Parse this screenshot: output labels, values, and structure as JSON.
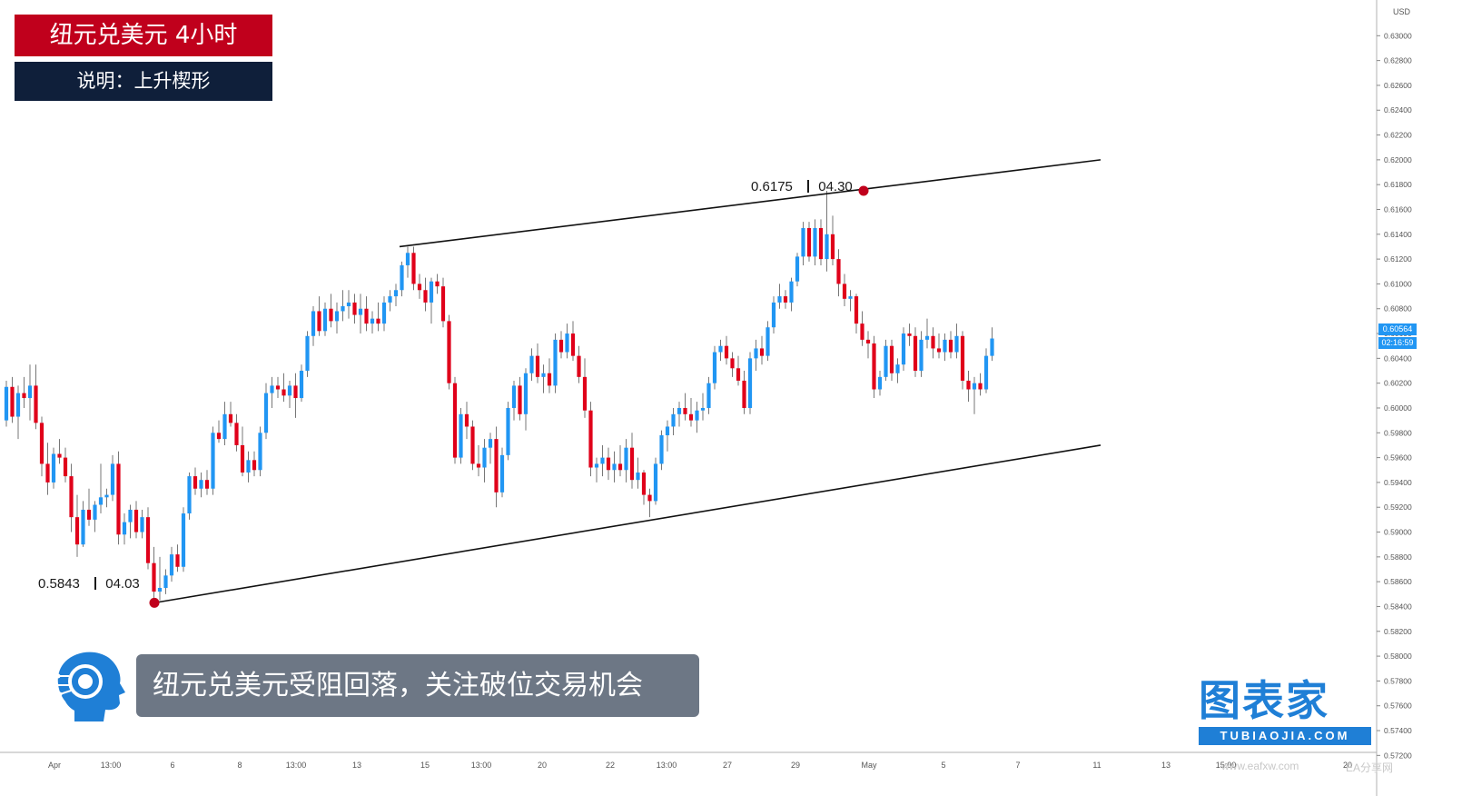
{
  "header": {
    "title": "纽元兑美元 4小时",
    "description": "说明：上升楔形"
  },
  "caption": "纽元兑美元受阻回落，关注破位交易机会",
  "annotations": {
    "low_value": "0.5843",
    "low_date": "04.03",
    "high_value": "0.6175",
    "high_date": "04.30"
  },
  "price_axis": {
    "currency": "USD",
    "current_price": "0.60564",
    "countdown": "02:16:59"
  },
  "watermark": {
    "brand": "图表家",
    "domain": "TUBIAOJIA.COM",
    "site2": "www.eafxw.com",
    "site2_label": "EA分享网"
  },
  "colors": {
    "bull": "#2196f3",
    "bear": "#e0001a",
    "title_bg": "#c0001c",
    "desc_bg": "#0f1f3a",
    "caption_bg": "#6d7785",
    "brand_blue": "#1f7fd6"
  },
  "icons": {
    "avatar": "ai-head-icon"
  },
  "chart_data": {
    "type": "candlestick",
    "title": "纽元兑美元 4小时",
    "ylim": [
      0.571,
      0.632
    ],
    "y_ticks": [
      "0.63000",
      "0.62800",
      "0.62600",
      "0.62400",
      "0.62200",
      "0.62000",
      "0.61800",
      "0.61600",
      "0.61400",
      "0.61200",
      "0.61000",
      "0.60800",
      "0.60600",
      "0.60400",
      "0.60200",
      "0.60000",
      "0.59800",
      "0.59600",
      "0.59400",
      "0.59200",
      "0.59000",
      "0.58800",
      "0.58600",
      "0.58400",
      "0.58200",
      "0.58000",
      "0.57800",
      "0.57600",
      "0.57400",
      "0.57200"
    ],
    "x_ticks": [
      "Apr",
      "13:00",
      "6",
      "8",
      "13:00",
      "13",
      "15",
      "13:00",
      "20",
      "22",
      "13:00",
      "27",
      "29",
      "May",
      "5",
      "7",
      "11",
      "13",
      "15:00",
      "20"
    ],
    "grid": false,
    "candles": [
      {
        "o": 0.599,
        "h": 0.6022,
        "l": 0.5985,
        "c": 0.6017
      },
      {
        "o": 0.6017,
        "h": 0.6025,
        "l": 0.5988,
        "c": 0.5993
      },
      {
        "o": 0.5993,
        "h": 0.6018,
        "l": 0.5975,
        "c": 0.6012
      },
      {
        "o": 0.6012,
        "h": 0.6025,
        "l": 0.6,
        "c": 0.6008
      },
      {
        "o": 0.6008,
        "h": 0.6035,
        "l": 0.599,
        "c": 0.6018
      },
      {
        "o": 0.6018,
        "h": 0.6035,
        "l": 0.5983,
        "c": 0.5988
      },
      {
        "o": 0.5988,
        "h": 0.5993,
        "l": 0.5945,
        "c": 0.5955
      },
      {
        "o": 0.5955,
        "h": 0.5972,
        "l": 0.593,
        "c": 0.594
      },
      {
        "o": 0.594,
        "h": 0.5968,
        "l": 0.5935,
        "c": 0.5963
      },
      {
        "o": 0.5963,
        "h": 0.5975,
        "l": 0.5955,
        "c": 0.596
      },
      {
        "o": 0.596,
        "h": 0.5968,
        "l": 0.594,
        "c": 0.5945
      },
      {
        "o": 0.5945,
        "h": 0.5955,
        "l": 0.59,
        "c": 0.5912
      },
      {
        "o": 0.5912,
        "h": 0.593,
        "l": 0.588,
        "c": 0.589
      },
      {
        "o": 0.589,
        "h": 0.5925,
        "l": 0.5888,
        "c": 0.5918
      },
      {
        "o": 0.5918,
        "h": 0.5935,
        "l": 0.5905,
        "c": 0.591
      },
      {
        "o": 0.591,
        "h": 0.5925,
        "l": 0.59,
        "c": 0.5922
      },
      {
        "o": 0.5922,
        "h": 0.5955,
        "l": 0.5915,
        "c": 0.5928
      },
      {
        "o": 0.5928,
        "h": 0.5935,
        "l": 0.592,
        "c": 0.593
      },
      {
        "o": 0.593,
        "h": 0.5962,
        "l": 0.5925,
        "c": 0.5955
      },
      {
        "o": 0.5955,
        "h": 0.5965,
        "l": 0.589,
        "c": 0.5898
      },
      {
        "o": 0.5898,
        "h": 0.5915,
        "l": 0.589,
        "c": 0.5908
      },
      {
        "o": 0.5908,
        "h": 0.5922,
        "l": 0.5895,
        "c": 0.5918
      },
      {
        "o": 0.5918,
        "h": 0.5925,
        "l": 0.5895,
        "c": 0.59
      },
      {
        "o": 0.59,
        "h": 0.5918,
        "l": 0.5895,
        "c": 0.5912
      },
      {
        "o": 0.5912,
        "h": 0.592,
        "l": 0.587,
        "c": 0.5875
      },
      {
        "o": 0.5875,
        "h": 0.5888,
        "l": 0.5843,
        "c": 0.5852
      },
      {
        "o": 0.5852,
        "h": 0.588,
        "l": 0.5845,
        "c": 0.5855
      },
      {
        "o": 0.5855,
        "h": 0.587,
        "l": 0.585,
        "c": 0.5865
      },
      {
        "o": 0.5865,
        "h": 0.5888,
        "l": 0.586,
        "c": 0.5882
      },
      {
        "o": 0.5882,
        "h": 0.589,
        "l": 0.5868,
        "c": 0.5872
      },
      {
        "o": 0.5872,
        "h": 0.592,
        "l": 0.5868,
        "c": 0.5915
      },
      {
        "o": 0.5915,
        "h": 0.5948,
        "l": 0.591,
        "c": 0.5945
      },
      {
        "o": 0.5945,
        "h": 0.5952,
        "l": 0.593,
        "c": 0.5935
      },
      {
        "o": 0.5935,
        "h": 0.5948,
        "l": 0.5928,
        "c": 0.5942
      },
      {
        "o": 0.5942,
        "h": 0.595,
        "l": 0.593,
        "c": 0.5935
      },
      {
        "o": 0.5935,
        "h": 0.5985,
        "l": 0.593,
        "c": 0.598
      },
      {
        "o": 0.598,
        "h": 0.599,
        "l": 0.5972,
        "c": 0.5975
      },
      {
        "o": 0.5975,
        "h": 0.6005,
        "l": 0.597,
        "c": 0.5995
      },
      {
        "o": 0.5995,
        "h": 0.6005,
        "l": 0.5985,
        "c": 0.5988
      },
      {
        "o": 0.5988,
        "h": 0.5995,
        "l": 0.5965,
        "c": 0.597
      },
      {
        "o": 0.597,
        "h": 0.5985,
        "l": 0.5945,
        "c": 0.5948
      },
      {
        "o": 0.5948,
        "h": 0.5965,
        "l": 0.594,
        "c": 0.5958
      },
      {
        "o": 0.5958,
        "h": 0.5965,
        "l": 0.5945,
        "c": 0.595
      },
      {
        "o": 0.595,
        "h": 0.5985,
        "l": 0.5945,
        "c": 0.598
      },
      {
        "o": 0.598,
        "h": 0.602,
        "l": 0.5975,
        "c": 0.6012
      },
      {
        "o": 0.6012,
        "h": 0.6025,
        "l": 0.6,
        "c": 0.6018
      },
      {
        "o": 0.6018,
        "h": 0.6025,
        "l": 0.6008,
        "c": 0.6015
      },
      {
        "o": 0.6015,
        "h": 0.6028,
        "l": 0.6005,
        "c": 0.601
      },
      {
        "o": 0.601,
        "h": 0.6022,
        "l": 0.6,
        "c": 0.6018
      },
      {
        "o": 0.6018,
        "h": 0.6028,
        "l": 0.5992,
        "c": 0.6008
      },
      {
        "o": 0.6008,
        "h": 0.6035,
        "l": 0.6005,
        "c": 0.603
      },
      {
        "o": 0.603,
        "h": 0.6062,
        "l": 0.6025,
        "c": 0.6058
      },
      {
        "o": 0.6058,
        "h": 0.6082,
        "l": 0.605,
        "c": 0.6078
      },
      {
        "o": 0.6078,
        "h": 0.609,
        "l": 0.6058,
        "c": 0.6062
      },
      {
        "o": 0.6062,
        "h": 0.6085,
        "l": 0.6058,
        "c": 0.608
      },
      {
        "o": 0.608,
        "h": 0.6092,
        "l": 0.6065,
        "c": 0.607
      },
      {
        "o": 0.607,
        "h": 0.6085,
        "l": 0.606,
        "c": 0.6078
      },
      {
        "o": 0.6078,
        "h": 0.6095,
        "l": 0.607,
        "c": 0.6082
      },
      {
        "o": 0.6082,
        "h": 0.6095,
        "l": 0.6072,
        "c": 0.6085
      },
      {
        "o": 0.6085,
        "h": 0.6092,
        "l": 0.6068,
        "c": 0.6075
      },
      {
        "o": 0.6075,
        "h": 0.6092,
        "l": 0.606,
        "c": 0.608
      },
      {
        "o": 0.608,
        "h": 0.609,
        "l": 0.6062,
        "c": 0.6068
      },
      {
        "o": 0.6068,
        "h": 0.6078,
        "l": 0.606,
        "c": 0.6072
      },
      {
        "o": 0.6072,
        "h": 0.6085,
        "l": 0.6062,
        "c": 0.6068
      },
      {
        "o": 0.6068,
        "h": 0.609,
        "l": 0.6062,
        "c": 0.6085
      },
      {
        "o": 0.6085,
        "h": 0.6095,
        "l": 0.6078,
        "c": 0.609
      },
      {
        "o": 0.609,
        "h": 0.61,
        "l": 0.6082,
        "c": 0.6095
      },
      {
        "o": 0.6095,
        "h": 0.6118,
        "l": 0.609,
        "c": 0.6115
      },
      {
        "o": 0.6115,
        "h": 0.613,
        "l": 0.6105,
        "c": 0.6125
      },
      {
        "o": 0.6125,
        "h": 0.613,
        "l": 0.6095,
        "c": 0.61
      },
      {
        "o": 0.61,
        "h": 0.6108,
        "l": 0.6088,
        "c": 0.6095
      },
      {
        "o": 0.6095,
        "h": 0.6105,
        "l": 0.6078,
        "c": 0.6085
      },
      {
        "o": 0.6085,
        "h": 0.6105,
        "l": 0.6068,
        "c": 0.6102
      },
      {
        "o": 0.6102,
        "h": 0.6108,
        "l": 0.6092,
        "c": 0.6098
      },
      {
        "o": 0.6098,
        "h": 0.6105,
        "l": 0.6065,
        "c": 0.607
      },
      {
        "o": 0.607,
        "h": 0.6075,
        "l": 0.6015,
        "c": 0.602
      },
      {
        "o": 0.602,
        "h": 0.6025,
        "l": 0.5955,
        "c": 0.596
      },
      {
        "o": 0.596,
        "h": 0.6,
        "l": 0.5955,
        "c": 0.5995
      },
      {
        "o": 0.5995,
        "h": 0.6005,
        "l": 0.5975,
        "c": 0.5985
      },
      {
        "o": 0.5985,
        "h": 0.599,
        "l": 0.595,
        "c": 0.5955
      },
      {
        "o": 0.5955,
        "h": 0.597,
        "l": 0.5945,
        "c": 0.5952
      },
      {
        "o": 0.5952,
        "h": 0.5975,
        "l": 0.594,
        "c": 0.5968
      },
      {
        "o": 0.5968,
        "h": 0.598,
        "l": 0.5955,
        "c": 0.5975
      },
      {
        "o": 0.5975,
        "h": 0.5985,
        "l": 0.592,
        "c": 0.5932
      },
      {
        "o": 0.5932,
        "h": 0.5968,
        "l": 0.5928,
        "c": 0.5962
      },
      {
        "o": 0.5962,
        "h": 0.6005,
        "l": 0.5958,
        "c": 0.6
      },
      {
        "o": 0.6,
        "h": 0.6022,
        "l": 0.599,
        "c": 0.6018
      },
      {
        "o": 0.6018,
        "h": 0.6025,
        "l": 0.599,
        "c": 0.5995
      },
      {
        "o": 0.5995,
        "h": 0.6032,
        "l": 0.5982,
        "c": 0.6028
      },
      {
        "o": 0.6028,
        "h": 0.6048,
        "l": 0.6022,
        "c": 0.6042
      },
      {
        "o": 0.6042,
        "h": 0.6052,
        "l": 0.602,
        "c": 0.6025
      },
      {
        "o": 0.6025,
        "h": 0.6035,
        "l": 0.6012,
        "c": 0.6028
      },
      {
        "o": 0.6028,
        "h": 0.604,
        "l": 0.6012,
        "c": 0.6018
      },
      {
        "o": 0.6018,
        "h": 0.606,
        "l": 0.6012,
        "c": 0.6055
      },
      {
        "o": 0.6055,
        "h": 0.6062,
        "l": 0.604,
        "c": 0.6045
      },
      {
        "o": 0.6045,
        "h": 0.6068,
        "l": 0.604,
        "c": 0.606
      },
      {
        "o": 0.606,
        "h": 0.607,
        "l": 0.6038,
        "c": 0.6042
      },
      {
        "o": 0.6042,
        "h": 0.605,
        "l": 0.602,
        "c": 0.6025
      },
      {
        "o": 0.6025,
        "h": 0.604,
        "l": 0.5992,
        "c": 0.5998
      },
      {
        "o": 0.5998,
        "h": 0.6005,
        "l": 0.5945,
        "c": 0.5952
      },
      {
        "o": 0.5952,
        "h": 0.596,
        "l": 0.594,
        "c": 0.5955
      },
      {
        "o": 0.5955,
        "h": 0.597,
        "l": 0.5945,
        "c": 0.596
      },
      {
        "o": 0.596,
        "h": 0.5968,
        "l": 0.5942,
        "c": 0.595
      },
      {
        "o": 0.595,
        "h": 0.5965,
        "l": 0.594,
        "c": 0.5955
      },
      {
        "o": 0.5955,
        "h": 0.597,
        "l": 0.5945,
        "c": 0.595
      },
      {
        "o": 0.595,
        "h": 0.5975,
        "l": 0.594,
        "c": 0.5968
      },
      {
        "o": 0.5968,
        "h": 0.598,
        "l": 0.5935,
        "c": 0.5942
      },
      {
        "o": 0.5942,
        "h": 0.596,
        "l": 0.5935,
        "c": 0.5948
      },
      {
        "o": 0.5948,
        "h": 0.595,
        "l": 0.5922,
        "c": 0.593
      },
      {
        "o": 0.593,
        "h": 0.5935,
        "l": 0.5912,
        "c": 0.5925
      },
      {
        "o": 0.5925,
        "h": 0.596,
        "l": 0.5922,
        "c": 0.5955
      },
      {
        "o": 0.5955,
        "h": 0.5982,
        "l": 0.595,
        "c": 0.5978
      },
      {
        "o": 0.5978,
        "h": 0.599,
        "l": 0.5965,
        "c": 0.5985
      },
      {
        "o": 0.5985,
        "h": 0.6,
        "l": 0.5978,
        "c": 0.5995
      },
      {
        "o": 0.5995,
        "h": 0.6005,
        "l": 0.5985,
        "c": 0.6
      },
      {
        "o": 0.6,
        "h": 0.6012,
        "l": 0.599,
        "c": 0.5995
      },
      {
        "o": 0.5995,
        "h": 0.6008,
        "l": 0.5985,
        "c": 0.599
      },
      {
        "o": 0.599,
        "h": 0.6005,
        "l": 0.598,
        "c": 0.5998
      },
      {
        "o": 0.5998,
        "h": 0.6012,
        "l": 0.599,
        "c": 0.6
      },
      {
        "o": 0.6,
        "h": 0.6025,
        "l": 0.5995,
        "c": 0.602
      },
      {
        "o": 0.602,
        "h": 0.605,
        "l": 0.6015,
        "c": 0.6045
      },
      {
        "o": 0.6045,
        "h": 0.6055,
        "l": 0.6038,
        "c": 0.605
      },
      {
        "o": 0.605,
        "h": 0.6058,
        "l": 0.6035,
        "c": 0.604
      },
      {
        "o": 0.604,
        "h": 0.6045,
        "l": 0.6025,
        "c": 0.6032
      },
      {
        "o": 0.6032,
        "h": 0.6042,
        "l": 0.6018,
        "c": 0.6022
      },
      {
        "o": 0.6022,
        "h": 0.603,
        "l": 0.5995,
        "c": 0.6
      },
      {
        "o": 0.6,
        "h": 0.6045,
        "l": 0.5995,
        "c": 0.604
      },
      {
        "o": 0.604,
        "h": 0.6055,
        "l": 0.603,
        "c": 0.6048
      },
      {
        "o": 0.6048,
        "h": 0.6058,
        "l": 0.6035,
        "c": 0.6042
      },
      {
        "o": 0.6042,
        "h": 0.607,
        "l": 0.6038,
        "c": 0.6065
      },
      {
        "o": 0.6065,
        "h": 0.609,
        "l": 0.606,
        "c": 0.6085
      },
      {
        "o": 0.6085,
        "h": 0.61,
        "l": 0.608,
        "c": 0.609
      },
      {
        "o": 0.609,
        "h": 0.6095,
        "l": 0.608,
        "c": 0.6085
      },
      {
        "o": 0.6085,
        "h": 0.6105,
        "l": 0.6078,
        "c": 0.6102
      },
      {
        "o": 0.6102,
        "h": 0.6125,
        "l": 0.6098,
        "c": 0.6122
      },
      {
        "o": 0.6122,
        "h": 0.615,
        "l": 0.6115,
        "c": 0.6145
      },
      {
        "o": 0.6145,
        "h": 0.615,
        "l": 0.6118,
        "c": 0.6122
      },
      {
        "o": 0.6122,
        "h": 0.6152,
        "l": 0.6115,
        "c": 0.6145
      },
      {
        "o": 0.6145,
        "h": 0.6152,
        "l": 0.6115,
        "c": 0.612
      },
      {
        "o": 0.612,
        "h": 0.6175,
        "l": 0.611,
        "c": 0.614
      },
      {
        "o": 0.614,
        "h": 0.6155,
        "l": 0.6115,
        "c": 0.612
      },
      {
        "o": 0.612,
        "h": 0.6128,
        "l": 0.609,
        "c": 0.61
      },
      {
        "o": 0.61,
        "h": 0.6108,
        "l": 0.6082,
        "c": 0.6088
      },
      {
        "o": 0.6088,
        "h": 0.6095,
        "l": 0.6078,
        "c": 0.609
      },
      {
        "o": 0.609,
        "h": 0.6092,
        "l": 0.606,
        "c": 0.6068
      },
      {
        "o": 0.6068,
        "h": 0.6078,
        "l": 0.605,
        "c": 0.6055
      },
      {
        "o": 0.6055,
        "h": 0.6062,
        "l": 0.604,
        "c": 0.6052
      },
      {
        "o": 0.6052,
        "h": 0.6058,
        "l": 0.6008,
        "c": 0.6015
      },
      {
        "o": 0.6015,
        "h": 0.603,
        "l": 0.601,
        "c": 0.6025
      },
      {
        "o": 0.6025,
        "h": 0.6055,
        "l": 0.6022,
        "c": 0.605
      },
      {
        "o": 0.605,
        "h": 0.6055,
        "l": 0.6022,
        "c": 0.6028
      },
      {
        "o": 0.6028,
        "h": 0.604,
        "l": 0.602,
        "c": 0.6035
      },
      {
        "o": 0.6035,
        "h": 0.6065,
        "l": 0.603,
        "c": 0.606
      },
      {
        "o": 0.606,
        "h": 0.6068,
        "l": 0.605,
        "c": 0.6058
      },
      {
        "o": 0.6058,
        "h": 0.6065,
        "l": 0.6025,
        "c": 0.603
      },
      {
        "o": 0.603,
        "h": 0.6062,
        "l": 0.6025,
        "c": 0.6055
      },
      {
        "o": 0.6055,
        "h": 0.6072,
        "l": 0.6048,
        "c": 0.6058
      },
      {
        "o": 0.6058,
        "h": 0.6065,
        "l": 0.604,
        "c": 0.6048
      },
      {
        "o": 0.6048,
        "h": 0.606,
        "l": 0.604,
        "c": 0.6045
      },
      {
        "o": 0.6045,
        "h": 0.606,
        "l": 0.6038,
        "c": 0.6055
      },
      {
        "o": 0.6055,
        "h": 0.6062,
        "l": 0.604,
        "c": 0.6045
      },
      {
        "o": 0.6045,
        "h": 0.6068,
        "l": 0.604,
        "c": 0.6058
      },
      {
        "o": 0.6058,
        "h": 0.6062,
        "l": 0.6015,
        "c": 0.6022
      },
      {
        "o": 0.6022,
        "h": 0.603,
        "l": 0.6005,
        "c": 0.6015
      },
      {
        "o": 0.6015,
        "h": 0.6025,
        "l": 0.5995,
        "c": 0.602
      },
      {
        "o": 0.602,
        "h": 0.6028,
        "l": 0.601,
        "c": 0.6015
      },
      {
        "o": 0.6015,
        "h": 0.6048,
        "l": 0.6012,
        "c": 0.6042
      },
      {
        "o": 0.6042,
        "h": 0.6065,
        "l": 0.6038,
        "c": 0.6056
      }
    ],
    "lines": [
      {
        "name": "upper",
        "from": [
          36,
          0.613
        ],
        "to": [
          null,
          0.62
        ]
      },
      {
        "name": "lower",
        "from": [
          25,
          0.5843
        ],
        "to": [
          null,
          0.597
        ]
      }
    ]
  }
}
